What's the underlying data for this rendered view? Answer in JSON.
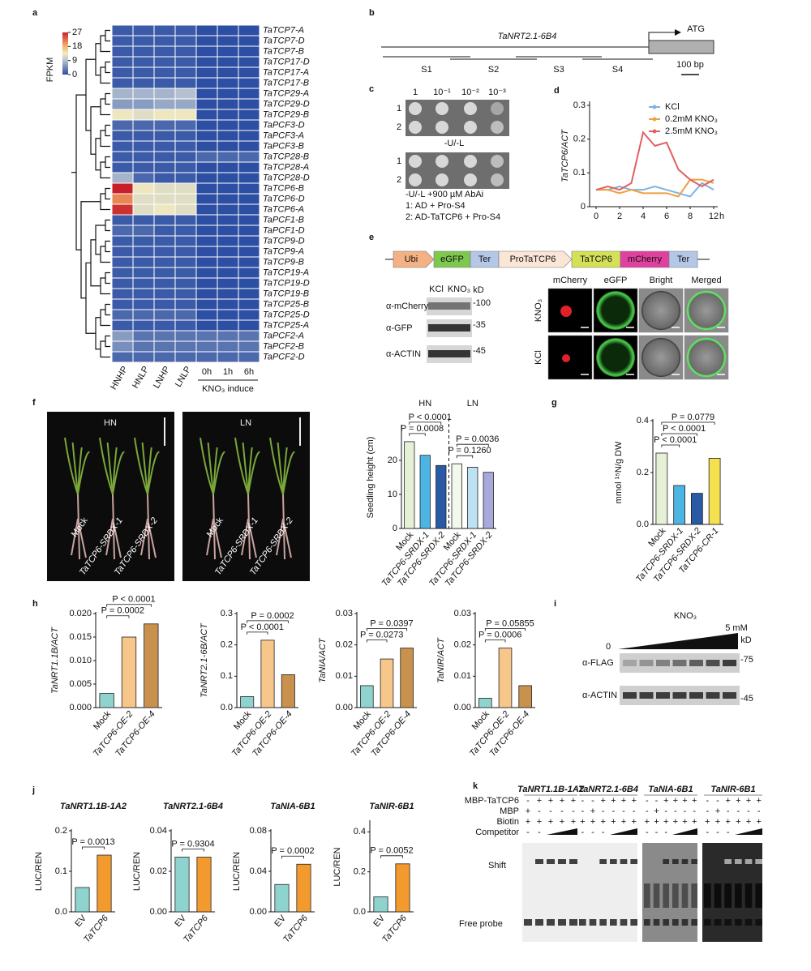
{
  "chart_data": [
    {
      "type": "heatmap",
      "panel": "a",
      "rows": [
        "TaTCP7-A",
        "TaTCP7-D",
        "TaTCP7-B",
        "TaTCP17-D",
        "TaTCP17-A",
        "TaTCP17-B",
        "TaTCP29-A",
        "TaTCP29-D",
        "TaTCP29-B",
        "TaPCF3-D",
        "TaPCF3-A",
        "TaPCF3-B",
        "TaTCP28-B",
        "TaTCP28-A",
        "TaTCP28-D",
        "TaTCP6-B",
        "TaTCP6-D",
        "TaTCP6-A",
        "TaPCF1-B",
        "TaPCF1-D",
        "TaTCP9-D",
        "TaTCP9-A",
        "TaTCP9-B",
        "TaTCP19-A",
        "TaTCP19-D",
        "TaTCP19-B",
        "TaTCP25-B",
        "TaTCP25-D",
        "TaTCP25-A",
        "TaPCF2-A",
        "TaPCF2-B",
        "TaPCF2-D"
      ],
      "columns": [
        "HNHP",
        "HNLP",
        "LNHP",
        "LNLP"
      ],
      "induce_columns": [
        "0h",
        "1h",
        "6h"
      ],
      "induce_label": "KNO₃ induce",
      "values": [
        [
          1,
          1,
          1,
          1,
          0,
          0,
          0
        ],
        [
          1,
          1,
          1,
          1,
          0,
          0,
          0
        ],
        [
          1,
          1,
          1,
          1,
          0,
          0,
          0
        ],
        [
          1,
          1,
          1,
          1,
          0,
          0,
          0
        ],
        [
          1,
          1,
          1,
          1,
          0,
          0,
          0
        ],
        [
          1,
          1,
          1,
          1,
          0,
          0,
          0
        ],
        [
          8,
          8,
          8,
          9,
          0,
          0,
          0
        ],
        [
          6,
          6,
          7,
          7,
          0,
          0,
          0
        ],
        [
          13,
          12,
          13,
          13,
          0,
          0,
          0
        ],
        [
          2,
          2,
          2,
          2,
          0,
          0,
          0
        ],
        [
          1,
          1,
          1,
          1,
          0,
          0,
          0
        ],
        [
          1,
          1,
          1,
          1,
          0,
          0,
          0
        ],
        [
          1,
          1,
          1,
          1,
          2,
          2,
          2
        ],
        [
          1,
          1,
          1,
          1,
          0,
          0,
          0
        ],
        [
          8,
          2,
          1,
          1,
          0,
          0,
          0
        ],
        [
          27,
          13,
          12,
          12,
          0,
          0,
          0
        ],
        [
          21,
          12,
          12,
          12,
          0,
          0,
          0
        ],
        [
          26,
          12,
          13,
          12,
          0,
          0,
          0
        ],
        [
          1,
          1,
          1,
          1,
          0,
          0,
          0
        ],
        [
          2,
          2,
          1,
          1,
          0,
          0,
          0
        ],
        [
          1,
          1,
          1,
          1,
          0,
          0,
          0
        ],
        [
          1,
          1,
          1,
          1,
          0,
          0,
          0
        ],
        [
          1,
          1,
          1,
          1,
          0,
          0,
          0
        ],
        [
          1,
          1,
          1,
          1,
          0,
          0,
          0
        ],
        [
          1,
          1,
          1,
          1,
          0,
          0,
          0
        ],
        [
          1,
          1,
          1,
          1,
          0,
          0,
          0
        ],
        [
          1,
          1,
          1,
          1,
          0,
          0,
          0
        ],
        [
          2,
          2,
          2,
          2,
          0,
          0,
          0
        ],
        [
          1,
          1,
          1,
          1,
          0,
          0,
          0
        ],
        [
          6,
          3,
          3,
          3,
          3,
          3,
          3
        ],
        [
          5,
          3,
          3,
          3,
          3,
          3,
          3
        ],
        [
          2,
          2,
          2,
          2,
          2,
          2,
          2
        ]
      ],
      "clim": [
        0,
        27
      ],
      "cticks": [
        0,
        9,
        18,
        27
      ],
      "colorbar_label": "FPKM"
    },
    {
      "type": "line",
      "panel": "d",
      "categories": [
        "0",
        null,
        "2",
        null,
        "4",
        null,
        "6",
        null,
        "8",
        null,
        "12"
      ],
      "x_unit": "h",
      "ylabel": "TaTCP6/ACT",
      "ylim": [
        0,
        0.3
      ],
      "yticks": [
        0,
        0.1,
        0.2,
        0.3
      ],
      "series": [
        {
          "name": "KCl",
          "color": "#7fb2e5",
          "values": [
            0.05,
            0.05,
            0.06,
            0.05,
            0.05,
            0.06,
            0.05,
            0.04,
            0.03,
            0.07,
            0.05
          ]
        },
        {
          "name": "0.2mM KNO₃",
          "color": "#f0a040",
          "values": [
            0.05,
            0.05,
            0.04,
            0.05,
            0.04,
            0.04,
            0.04,
            0.03,
            0.08,
            0.08,
            0.07
          ]
        },
        {
          "name": "2.5mM KNO₃",
          "color": "#e06060",
          "values": [
            0.05,
            0.06,
            0.05,
            0.07,
            0.22,
            0.18,
            0.19,
            0.11,
            0.08,
            0.06,
            0.08
          ]
        }
      ]
    },
    {
      "type": "bar",
      "panel": "f",
      "ylabel": "Seedling height (cm)",
      "ylim": [
        0,
        30
      ],
      "yticks": [
        0,
        10,
        20
      ],
      "groups": [
        {
          "name": "HN",
          "categories": [
            "Mock",
            "TaTCP6-SRDX-1",
            "TaTCP6-SRDX-2"
          ],
          "values": [
            25.5,
            21.5,
            18.5
          ],
          "colors": [
            "#e6f0d6",
            "#4cb5e3",
            "#2a59a6"
          ],
          "annotations": [
            "P < 0.0001",
            "P = 0.0008"
          ]
        },
        {
          "name": "LN",
          "categories": [
            "Mock",
            "TaTCP6-SRDX-1",
            "TaTCP6-SRDX-2"
          ],
          "values": [
            19,
            18,
            16.5
          ],
          "colors": [
            "#f3f8ec",
            "#bde2f3",
            "#a6a9da"
          ],
          "annotations": [
            "P = 0.0036",
            "P = 0.1260"
          ]
        }
      ]
    },
    {
      "type": "bar",
      "panel": "g",
      "ylabel": "mmol ¹⁵N/g DW",
      "ylim": [
        0,
        0.4
      ],
      "yticks": [
        {
          "value": 0,
          "label": "0.0"
        },
        0.2,
        0.4
      ],
      "categories": [
        "Mock",
        "TaTCP6-SRDX-1",
        "TaTCP6-SRDX-2",
        "TaTCP6-CR-1"
      ],
      "values": [
        0.275,
        0.15,
        0.12,
        0.255
      ],
      "colors": [
        "#e6f0d6",
        "#4cb5e3",
        "#2a59a6",
        "#f5e050"
      ],
      "annotations": [
        "P = 0.0779",
        "P < 0.0001",
        "P < 0.0001"
      ]
    },
    {
      "type": "bar",
      "panel": "h",
      "ylabel": "TaNRT1.1B/ACT",
      "ylim": [
        0,
        0.02
      ],
      "yticks": [
        {
          "value": 0,
          "label": "0.000"
        },
        {
          "value": 0.005,
          "label": "0.005"
        },
        {
          "value": 0.01,
          "label": "0.010"
        },
        {
          "value": 0.015,
          "label": "0.015"
        },
        {
          "value": 0.02,
          "label": "0.020"
        }
      ],
      "categories": [
        "Mock",
        "TaTCP6-OE-2",
        "TaTCP6-OE-4"
      ],
      "values": [
        0.003,
        0.015,
        0.0178
      ],
      "colors": [
        "#8fd3cf",
        "#f7c68a",
        "#c8914e"
      ],
      "annotations": [
        "P < 0.0001",
        "P = 0.0002"
      ]
    },
    {
      "type": "bar",
      "ylabel": "TaNRT2.1-6B/ACT",
      "ylim": [
        0,
        0.3
      ],
      "yticks": [
        {
          "value": 0,
          "label": "0.0"
        },
        0.1,
        0.2,
        0.3
      ],
      "categories": [
        "Mock",
        "TaTCP6-OE-2",
        "TaTCP6-OE-4"
      ],
      "values": [
        0.035,
        0.215,
        0.105
      ],
      "colors": [
        "#8fd3cf",
        "#f7c68a",
        "#c8914e"
      ],
      "annotations": [
        "P = 0.0002",
        "P < 0.0001"
      ]
    },
    {
      "type": "bar",
      "ylabel": "TaNIA/ACT",
      "ylim": [
        0,
        0.03
      ],
      "yticks": [
        {
          "value": 0,
          "label": "0.00"
        },
        0.01,
        0.02,
        0.03
      ],
      "categories": [
        "Mock",
        "TaTCP6-OE-2",
        "TaTCP6-OE-4"
      ],
      "values": [
        0.007,
        0.0155,
        0.019
      ],
      "colors": [
        "#8fd3cf",
        "#f7c68a",
        "#c8914e"
      ],
      "annotations": [
        "P = 0.0397",
        "P = 0.0273"
      ]
    },
    {
      "type": "bar",
      "ylabel": "TaNIR/ACT",
      "ylim": [
        0,
        0.03
      ],
      "yticks": [
        {
          "value": 0,
          "label": "0.00"
        },
        0.01,
        0.02,
        0.03
      ],
      "categories": [
        "Mock",
        "TaTCP6-OE-2",
        "TaTCP6-OE-4"
      ],
      "values": [
        0.003,
        0.019,
        0.007
      ],
      "colors": [
        "#8fd3cf",
        "#f7c68a",
        "#c8914e"
      ],
      "annotations": [
        "P = 0.05855",
        "P = 0.0006"
      ]
    },
    {
      "type": "bar",
      "panel": "j",
      "title": "TaNRT1.1B-1A2",
      "ylabel": "LUC/REN",
      "ylim": [
        0,
        0.2
      ],
      "yticks": [
        {
          "value": 0,
          "label": "0.0"
        },
        0.1,
        0.2
      ],
      "categories": [
        "EV",
        "TaTCP6"
      ],
      "values": [
        0.06,
        0.14
      ],
      "colors": [
        "#8fd3cf",
        "#f39a2e"
      ],
      "annotations": [
        "P = 0.0013"
      ]
    },
    {
      "type": "bar",
      "title": "TaNRT2.1-6B4",
      "ylabel": "LUC/REN",
      "ylim": [
        0,
        0.04
      ],
      "yticks": [
        {
          "value": 0,
          "label": "0.00"
        },
        0.02,
        0.04
      ],
      "categories": [
        "EV",
        "TaTCP6"
      ],
      "values": [
        0.027,
        0.027
      ],
      "colors": [
        "#8fd3cf",
        "#f39a2e"
      ],
      "annotations": [
        "P = 0.9304"
      ]
    },
    {
      "type": "bar",
      "title": "TaNIA-6B1",
      "ylabel": "LUC/REN",
      "ylim": [
        0,
        0.08
      ],
      "yticks": [
        {
          "value": 0,
          "label": "0.00"
        },
        0.04,
        0.08
      ],
      "categories": [
        "EV",
        "TaTCP6"
      ],
      "values": [
        0.027,
        0.047
      ],
      "colors": [
        "#8fd3cf",
        "#f39a2e"
      ],
      "annotations": [
        "P = 0.0002"
      ]
    },
    {
      "type": "bar",
      "title": "TaNIR-6B1",
      "ylabel": "LUC/REN",
      "ylim": [
        0,
        0.45
      ],
      "yticks": [
        {
          "value": 0,
          "label": "0.0"
        },
        0.2,
        0.4
      ],
      "categories": [
        "EV",
        "TaTCP6"
      ],
      "values": [
        0.075,
        0.24
      ],
      "colors": [
        "#8fd3cf",
        "#f39a2e"
      ],
      "annotations": [
        "P = 0.0052"
      ]
    }
  ],
  "panel_b": {
    "panel": "b",
    "gene": "TaNRT2.1-6B4",
    "start": "ATG",
    "fragments": [
      "S1",
      "S2",
      "S3",
      "S4"
    ],
    "scale": "100 bp"
  },
  "panel_c": {
    "panel": "c",
    "dilutions": [
      "1",
      "10⁻¹",
      "10⁻²",
      "10⁻³"
    ],
    "rows": [
      "1",
      "2"
    ],
    "plates": [
      "-U/-L",
      "-U/-L +900 µM AbAi"
    ],
    "legend": [
      "1: AD + Pro-S4",
      "2: AD-TaTCP6 + Pro-S4"
    ]
  },
  "panel_e": {
    "panel": "e",
    "construct": [
      "Ubi",
      "eGFP",
      "Ter",
      "ProTaTCP6",
      "TaTCP6",
      "mCherry",
      "Ter"
    ],
    "blot": {
      "lanes": [
        "KCl",
        "KNO₃"
      ],
      "unit": "kD",
      "antibodies": [
        "α-mCherry",
        "α-GFP",
        "α-ACTIN"
      ],
      "markers": [
        "-100",
        "-35",
        "-45"
      ]
    },
    "microscopy": {
      "channels": [
        "mCherry",
        "eGFP",
        "Bright",
        "Merged"
      ],
      "rows": [
        "KNO₃",
        "KCl"
      ]
    }
  },
  "panel_i": {
    "panel": "i",
    "treatment": "KNO₃",
    "low": "0",
    "high": "5 mM",
    "unit": "kD",
    "antibodies": [
      "α-FLAG",
      "α-ACTIN"
    ],
    "markers": [
      "-75",
      "-45"
    ]
  },
  "panel_k": {
    "panel": "k",
    "probes": [
      "TaNRT1.1B-1A2",
      "TaNRT2.1-6B4",
      "TaNIA-6B1",
      "TaNIR-6B1"
    ],
    "rows": [
      "MBP-TaTCP6",
      "MBP",
      "Biotin",
      "Competitor"
    ],
    "signs": [
      [
        [
          "-",
          "+",
          "+",
          "+",
          "+"
        ],
        [
          "+",
          "-",
          "-",
          "-",
          "-"
        ],
        [
          "+",
          "+",
          "+",
          "+",
          "+"
        ],
        [
          "-",
          "-"
        ]
      ],
      [
        [
          "-",
          "-",
          "+",
          "+",
          "+",
          "+"
        ],
        [
          "-",
          "+",
          "-",
          "-",
          "-",
          "-"
        ],
        [
          "+",
          "+",
          "+",
          "+",
          "+",
          "+"
        ],
        [
          "-",
          "-",
          "-"
        ]
      ],
      [
        [
          "-",
          "-",
          "+",
          "+",
          "+",
          "+"
        ],
        [
          "-",
          "+",
          "-",
          "-",
          "-",
          "-"
        ],
        [
          "+",
          "+",
          "+",
          "+",
          "+",
          "+"
        ],
        [
          "-",
          "-",
          "-"
        ]
      ],
      [
        [
          "-",
          "-",
          "+",
          "+",
          "+",
          "+"
        ],
        [
          "-",
          "+",
          "-",
          "-",
          "-",
          "-"
        ],
        [
          "+",
          "+",
          "+",
          "+",
          "+",
          "+"
        ],
        [
          "-",
          "-",
          "-"
        ]
      ]
    ],
    "shift": "Shift",
    "free_probe": "Free probe"
  }
}
